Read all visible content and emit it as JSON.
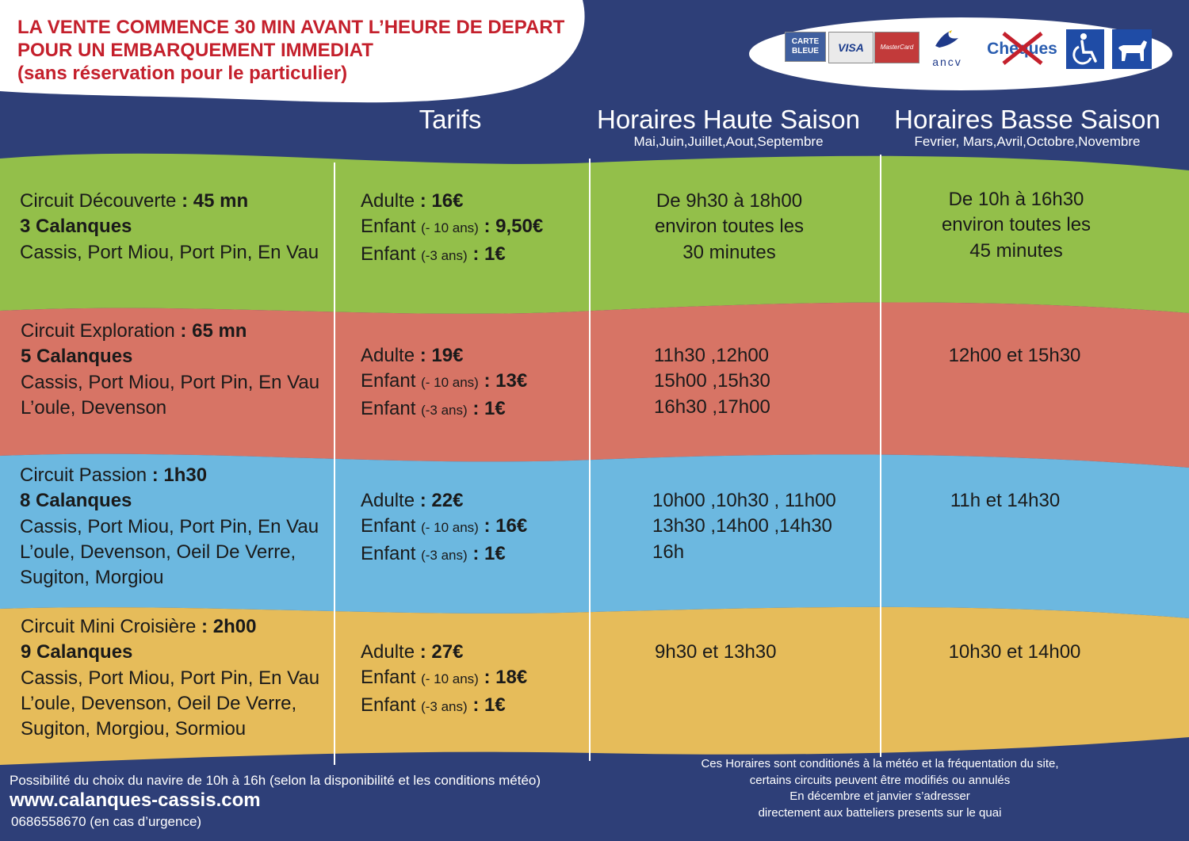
{
  "colors": {
    "navy": "#2e3f78",
    "green": "#93bf4a",
    "red": "#d77465",
    "blue": "#6cb8e0",
    "yellow": "#e6bc5a",
    "notice_red": "#c4202c"
  },
  "notice": {
    "line1": "LA VENTE COMMENCE 30 MIN AVANT L’HEURE DE DEPART",
    "line2": "POUR UN EMBARQUEMENT IMMEDIAT",
    "line3": "(sans réservation pour le particulier)"
  },
  "payments": {
    "carte_bleue_1": "CARTE",
    "carte_bleue_2": "BLEUE",
    "visa": "VISA",
    "mastercard": "MasterCard",
    "ancv": "ancv",
    "cheques": "Cheques",
    "icons": [
      "wheelchair-icon",
      "dog-icon",
      "ancv-bird-icon"
    ]
  },
  "headers": {
    "tarifs": "Tarifs",
    "haute_title": "Horaires Haute Saison",
    "haute_months": "Mai,Juin,Juillet,Aout,Septembre",
    "basse_title": "Horaires Basse Saison",
    "basse_months": "Fevrier, Mars,Avril,Octobre,Novembre"
  },
  "circuits": [
    {
      "name": "Circuit Découverte",
      "duration": "45 mn",
      "calanques": "3 Calanques",
      "places": [
        "Cassis, Port Miou, Port Pin, En Vau"
      ],
      "adulte_price": "16€",
      "enfant10_price": "9,50€",
      "enfant3_price": "1€",
      "haute": [
        "De 9h30 à 18h00",
        "environ toutes les",
        "30 minutes"
      ],
      "basse": [
        "De 10h à 16h30",
        "environ toutes les",
        "45 minutes"
      ]
    },
    {
      "name": "Circuit Exploration",
      "duration": "65 mn",
      "calanques": "5 Calanques",
      "places": [
        "Cassis, Port Miou, Port Pin, En Vau",
        "L’oule, Devenson"
      ],
      "adulte_price": "19€",
      "enfant10_price": "13€",
      "enfant3_price": "1€",
      "haute": [
        "11h30 ,12h00",
        "15h00 ,15h30",
        "16h30 ,17h00"
      ],
      "basse": [
        "12h00 et 15h30"
      ]
    },
    {
      "name": "Circuit Passion",
      "duration": "1h30",
      "calanques": "8 Calanques",
      "places": [
        "Cassis, Port Miou, Port Pin, En Vau",
        "L’oule, Devenson, Oeil De Verre,",
        "Sugiton, Morgiou"
      ],
      "adulte_price": "22€",
      "enfant10_price": "16€",
      "enfant3_price": "1€",
      "haute": [
        "10h00 ,10h30 , 11h00",
        "13h30 ,14h00 ,14h30",
        "16h"
      ],
      "basse": [
        "11h et 14h30"
      ]
    },
    {
      "name": "Circuit Mini Croisière",
      "duration": "2h00",
      "calanques": "9 Calanques",
      "places": [
        "Cassis, Port Miou, Port Pin, En Vau",
        "L’oule, Devenson, Oeil De Verre,",
        "Sugiton, Morgiou, Sormiou"
      ],
      "adulte_price": "27€",
      "enfant10_price": "18€",
      "enfant3_price": "1€",
      "haute": [
        "9h30 et 13h30"
      ],
      "basse": [
        "10h30 et 14h00"
      ]
    }
  ],
  "labels": {
    "adulte": "Adulte",
    "enfant": "Enfant",
    "moins10": "(- 10 ans)",
    "moins3": "(-3 ans)",
    "colon": ":"
  },
  "footer": {
    "choix": "Possibilité du choix du navire de 10h à 16h (selon la disponibilité et les conditions météo)",
    "website": "www.calanques-cassis.com",
    "phone": "0686558670 (en cas d’urgence)",
    "note1": "Ces Horaires sont conditionés à la météo et la fréquentation du site,",
    "note2": "certains circuits peuvent être modifiés ou annulés",
    "note3": "En décembre et janvier s’adresser",
    "note4": "directement aux batteliers presents sur le quai"
  }
}
